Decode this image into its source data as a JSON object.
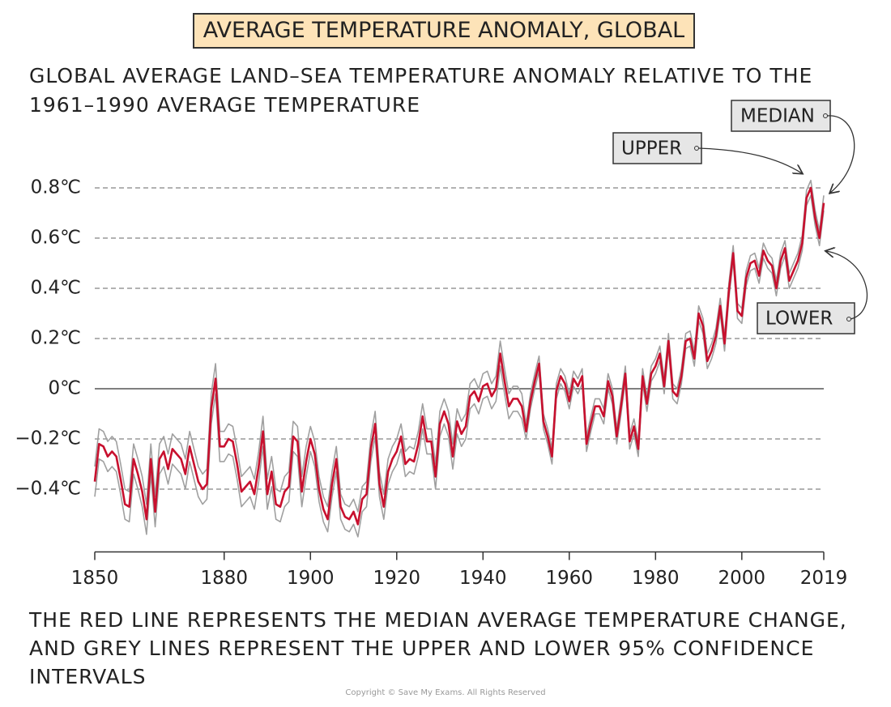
{
  "chart_data": {
    "type": "line",
    "title": "AVERAGE TEMPERATURE ANOMALY, GLOBAL",
    "subtitle": "GLOBAL AVERAGE LAND–SEA TEMPERATURE ANOMALY RELATIVE TO THE 1961–1990 AVERAGE TEMPERATURE",
    "note": "THE RED LINE REPRESENTS THE MEDIAN AVERAGE TEMPERATURE CHANGE, AND GREY LINES REPRESENT THE UPPER AND LOWER 95% CONFIDENCE INTERVALS",
    "copyright": "Copyright © Save My Exams. All Rights Reserved",
    "x": [
      1850,
      1851,
      1852,
      1853,
      1854,
      1855,
      1856,
      1857,
      1858,
      1859,
      1860,
      1861,
      1862,
      1863,
      1864,
      1865,
      1866,
      1867,
      1868,
      1869,
      1870,
      1871,
      1872,
      1873,
      1874,
      1875,
      1876,
      1877,
      1878,
      1879,
      1880,
      1881,
      1882,
      1883,
      1884,
      1885,
      1886,
      1887,
      1888,
      1889,
      1890,
      1891,
      1892,
      1893,
      1894,
      1895,
      1896,
      1897,
      1898,
      1899,
      1900,
      1901,
      1902,
      1903,
      1904,
      1905,
      1906,
      1907,
      1908,
      1909,
      1910,
      1911,
      1912,
      1913,
      1914,
      1915,
      1916,
      1917,
      1918,
      1919,
      1920,
      1921,
      1922,
      1923,
      1924,
      1925,
      1926,
      1927,
      1928,
      1929,
      1930,
      1931,
      1932,
      1933,
      1934,
      1935,
      1936,
      1937,
      1938,
      1939,
      1940,
      1941,
      1942,
      1943,
      1944,
      1945,
      1946,
      1947,
      1948,
      1949,
      1950,
      1951,
      1952,
      1953,
      1954,
      1955,
      1956,
      1957,
      1958,
      1959,
      1960,
      1961,
      1962,
      1963,
      1964,
      1965,
      1966,
      1967,
      1968,
      1969,
      1970,
      1971,
      1972,
      1973,
      1974,
      1975,
      1976,
      1977,
      1978,
      1979,
      1980,
      1981,
      1982,
      1983,
      1984,
      1985,
      1986,
      1987,
      1988,
      1989,
      1990,
      1991,
      1992,
      1993,
      1994,
      1995,
      1996,
      1997,
      1998,
      1999,
      2000,
      2001,
      2002,
      2003,
      2004,
      2005,
      2006,
      2007,
      2008,
      2009,
      2010,
      2011,
      2012,
      2013,
      2014,
      2015,
      2016,
      2017,
      2018,
      2019
    ],
    "series": [
      {
        "name": "UPPER",
        "color": "#a0a0a0",
        "values": [
          -0.31,
          -0.16,
          -0.17,
          -0.21,
          -0.19,
          -0.21,
          -0.3,
          -0.4,
          -0.41,
          -0.22,
          -0.28,
          -0.35,
          -0.46,
          -0.22,
          -0.43,
          -0.22,
          -0.19,
          -0.26,
          -0.18,
          -0.2,
          -0.22,
          -0.28,
          -0.17,
          -0.24,
          -0.31,
          -0.34,
          -0.32,
          -0.02,
          0.1,
          -0.17,
          -0.17,
          -0.14,
          -0.15,
          -0.24,
          -0.35,
          -0.33,
          -0.31,
          -0.36,
          -0.25,
          -0.11,
          -0.36,
          -0.27,
          -0.4,
          -0.41,
          -0.35,
          -0.33,
          -0.13,
          -0.15,
          -0.35,
          -0.23,
          -0.15,
          -0.21,
          -0.35,
          -0.43,
          -0.47,
          -0.33,
          -0.23,
          -0.42,
          -0.46,
          -0.47,
          -0.44,
          -0.49,
          -0.39,
          -0.37,
          -0.19,
          -0.09,
          -0.33,
          -0.42,
          -0.28,
          -0.23,
          -0.2,
          -0.14,
          -0.25,
          -0.23,
          -0.24,
          -0.17,
          -0.06,
          -0.16,
          -0.16,
          -0.3,
          -0.09,
          -0.04,
          -0.09,
          -0.22,
          -0.08,
          -0.13,
          -0.1,
          0.02,
          0.04,
          0.0,
          0.06,
          0.07,
          0.02,
          0.05,
          0.19,
          0.08,
          -0.02,
          0.01,
          0.01,
          -0.02,
          -0.14,
          -0.02,
          0.06,
          0.13,
          -0.1,
          -0.16,
          -0.24,
          0.02,
          0.08,
          0.05,
          -0.02,
          0.07,
          0.04,
          0.08,
          -0.19,
          -0.11,
          -0.04,
          -0.04,
          -0.08,
          0.06,
          0.0,
          -0.16,
          -0.04,
          0.09,
          -0.18,
          -0.12,
          -0.21,
          0.08,
          -0.03,
          0.09,
          0.12,
          0.17,
          0.04,
          0.22,
          0.02,
          0.0,
          0.08,
          0.22,
          0.23,
          0.15,
          0.33,
          0.28,
          0.14,
          0.18,
          0.24,
          0.36,
          0.21,
          0.42,
          0.57,
          0.34,
          0.32,
          0.47,
          0.53,
          0.54,
          0.48,
          0.58,
          0.54,
          0.52,
          0.43,
          0.54,
          0.59,
          0.46,
          0.5,
          0.54,
          0.61,
          0.79,
          0.83,
          0.71,
          0.63,
          0.77
        ]
      },
      {
        "name": "LOWER",
        "color": "#a0a0a0",
        "values": [
          -0.43,
          -0.28,
          -0.29,
          -0.33,
          -0.31,
          -0.33,
          -0.42,
          -0.52,
          -0.53,
          -0.34,
          -0.4,
          -0.47,
          -0.58,
          -0.34,
          -0.55,
          -0.34,
          -0.31,
          -0.38,
          -0.3,
          -0.32,
          -0.34,
          -0.4,
          -0.29,
          -0.36,
          -0.43,
          -0.46,
          -0.44,
          -0.14,
          -0.02,
          -0.29,
          -0.29,
          -0.26,
          -0.27,
          -0.36,
          -0.47,
          -0.45,
          -0.43,
          -0.48,
          -0.37,
          -0.23,
          -0.48,
          -0.39,
          -0.52,
          -0.53,
          -0.47,
          -0.45,
          -0.25,
          -0.27,
          -0.47,
          -0.35,
          -0.25,
          -0.31,
          -0.45,
          -0.53,
          -0.57,
          -0.43,
          -0.33,
          -0.52,
          -0.56,
          -0.57,
          -0.54,
          -0.59,
          -0.49,
          -0.47,
          -0.29,
          -0.19,
          -0.43,
          -0.52,
          -0.38,
          -0.33,
          -0.3,
          -0.24,
          -0.35,
          -0.33,
          -0.34,
          -0.27,
          -0.16,
          -0.26,
          -0.26,
          -0.4,
          -0.19,
          -0.14,
          -0.19,
          -0.32,
          -0.18,
          -0.23,
          -0.2,
          -0.08,
          -0.06,
          -0.1,
          -0.04,
          -0.03,
          -0.08,
          -0.05,
          0.09,
          -0.02,
          -0.12,
          -0.09,
          -0.09,
          -0.12,
          -0.2,
          -0.08,
          0.0,
          0.07,
          -0.16,
          -0.22,
          -0.3,
          -0.04,
          0.02,
          -0.01,
          -0.08,
          0.01,
          -0.02,
          0.02,
          -0.25,
          -0.17,
          -0.1,
          -0.1,
          -0.14,
          0.0,
          -0.06,
          -0.22,
          -0.1,
          0.03,
          -0.24,
          -0.18,
          -0.27,
          0.02,
          -0.09,
          0.03,
          0.06,
          0.11,
          -0.02,
          0.16,
          -0.04,
          -0.06,
          0.02,
          0.16,
          0.17,
          0.09,
          0.27,
          0.22,
          0.08,
          0.12,
          0.18,
          0.3,
          0.15,
          0.36,
          0.51,
          0.28,
          0.26,
          0.41,
          0.47,
          0.48,
          0.42,
          0.52,
          0.48,
          0.46,
          0.37,
          0.48,
          0.53,
          0.4,
          0.44,
          0.48,
          0.55,
          0.73,
          0.77,
          0.65,
          0.57,
          0.71
        ]
      },
      {
        "name": "MEDIAN",
        "color": "#c8102e",
        "values": [
          -0.37,
          -0.22,
          -0.23,
          -0.27,
          -0.25,
          -0.27,
          -0.36,
          -0.46,
          -0.47,
          -0.28,
          -0.34,
          -0.41,
          -0.52,
          -0.28,
          -0.49,
          -0.28,
          -0.25,
          -0.32,
          -0.24,
          -0.26,
          -0.28,
          -0.34,
          -0.23,
          -0.3,
          -0.37,
          -0.4,
          -0.38,
          -0.08,
          0.04,
          -0.23,
          -0.23,
          -0.2,
          -0.21,
          -0.3,
          -0.41,
          -0.39,
          -0.37,
          -0.42,
          -0.31,
          -0.17,
          -0.42,
          -0.33,
          -0.46,
          -0.47,
          -0.41,
          -0.39,
          -0.19,
          -0.21,
          -0.41,
          -0.29,
          -0.2,
          -0.26,
          -0.4,
          -0.48,
          -0.52,
          -0.38,
          -0.28,
          -0.47,
          -0.51,
          -0.52,
          -0.49,
          -0.54,
          -0.44,
          -0.42,
          -0.24,
          -0.14,
          -0.38,
          -0.47,
          -0.33,
          -0.28,
          -0.25,
          -0.19,
          -0.3,
          -0.28,
          -0.29,
          -0.22,
          -0.11,
          -0.21,
          -0.21,
          -0.35,
          -0.14,
          -0.09,
          -0.14,
          -0.27,
          -0.13,
          -0.18,
          -0.15,
          -0.03,
          -0.01,
          -0.05,
          0.01,
          0.02,
          -0.03,
          0.0,
          0.14,
          0.03,
          -0.07,
          -0.04,
          -0.04,
          -0.07,
          -0.17,
          -0.05,
          0.03,
          0.1,
          -0.13,
          -0.19,
          -0.27,
          -0.01,
          0.05,
          0.02,
          -0.05,
          0.04,
          0.01,
          0.05,
          -0.22,
          -0.14,
          -0.07,
          -0.07,
          -0.11,
          0.03,
          -0.03,
          -0.19,
          -0.07,
          0.06,
          -0.21,
          -0.15,
          -0.24,
          0.05,
          -0.06,
          0.06,
          0.09,
          0.14,
          0.01,
          0.19,
          -0.01,
          -0.03,
          0.05,
          0.19,
          0.2,
          0.12,
          0.3,
          0.25,
          0.11,
          0.15,
          0.21,
          0.33,
          0.18,
          0.39,
          0.54,
          0.31,
          0.29,
          0.44,
          0.5,
          0.51,
          0.45,
          0.55,
          0.51,
          0.49,
          0.4,
          0.51,
          0.56,
          0.43,
          0.47,
          0.51,
          0.58,
          0.76,
          0.8,
          0.68,
          0.6,
          0.74
        ]
      }
    ],
    "xlim": [
      1850,
      2019
    ],
    "xticks": [
      1850,
      1880,
      1900,
      1920,
      1940,
      1960,
      1980,
      2000,
      2019
    ],
    "ylim": [
      -0.65,
      0.85
    ],
    "yticks": [
      {
        "value": -0.4,
        "label": "−0.4℃"
      },
      {
        "value": -0.2,
        "label": "−0.2℃"
      },
      {
        "value": 0,
        "label": "0℃"
      },
      {
        "value": 0.2,
        "label": "0.2℃"
      },
      {
        "value": 0.4,
        "label": "0.4℃"
      },
      {
        "value": 0.6,
        "label": "0.6℃"
      },
      {
        "value": 0.8,
        "label": "0.8℃"
      }
    ],
    "grid": true
  }
}
